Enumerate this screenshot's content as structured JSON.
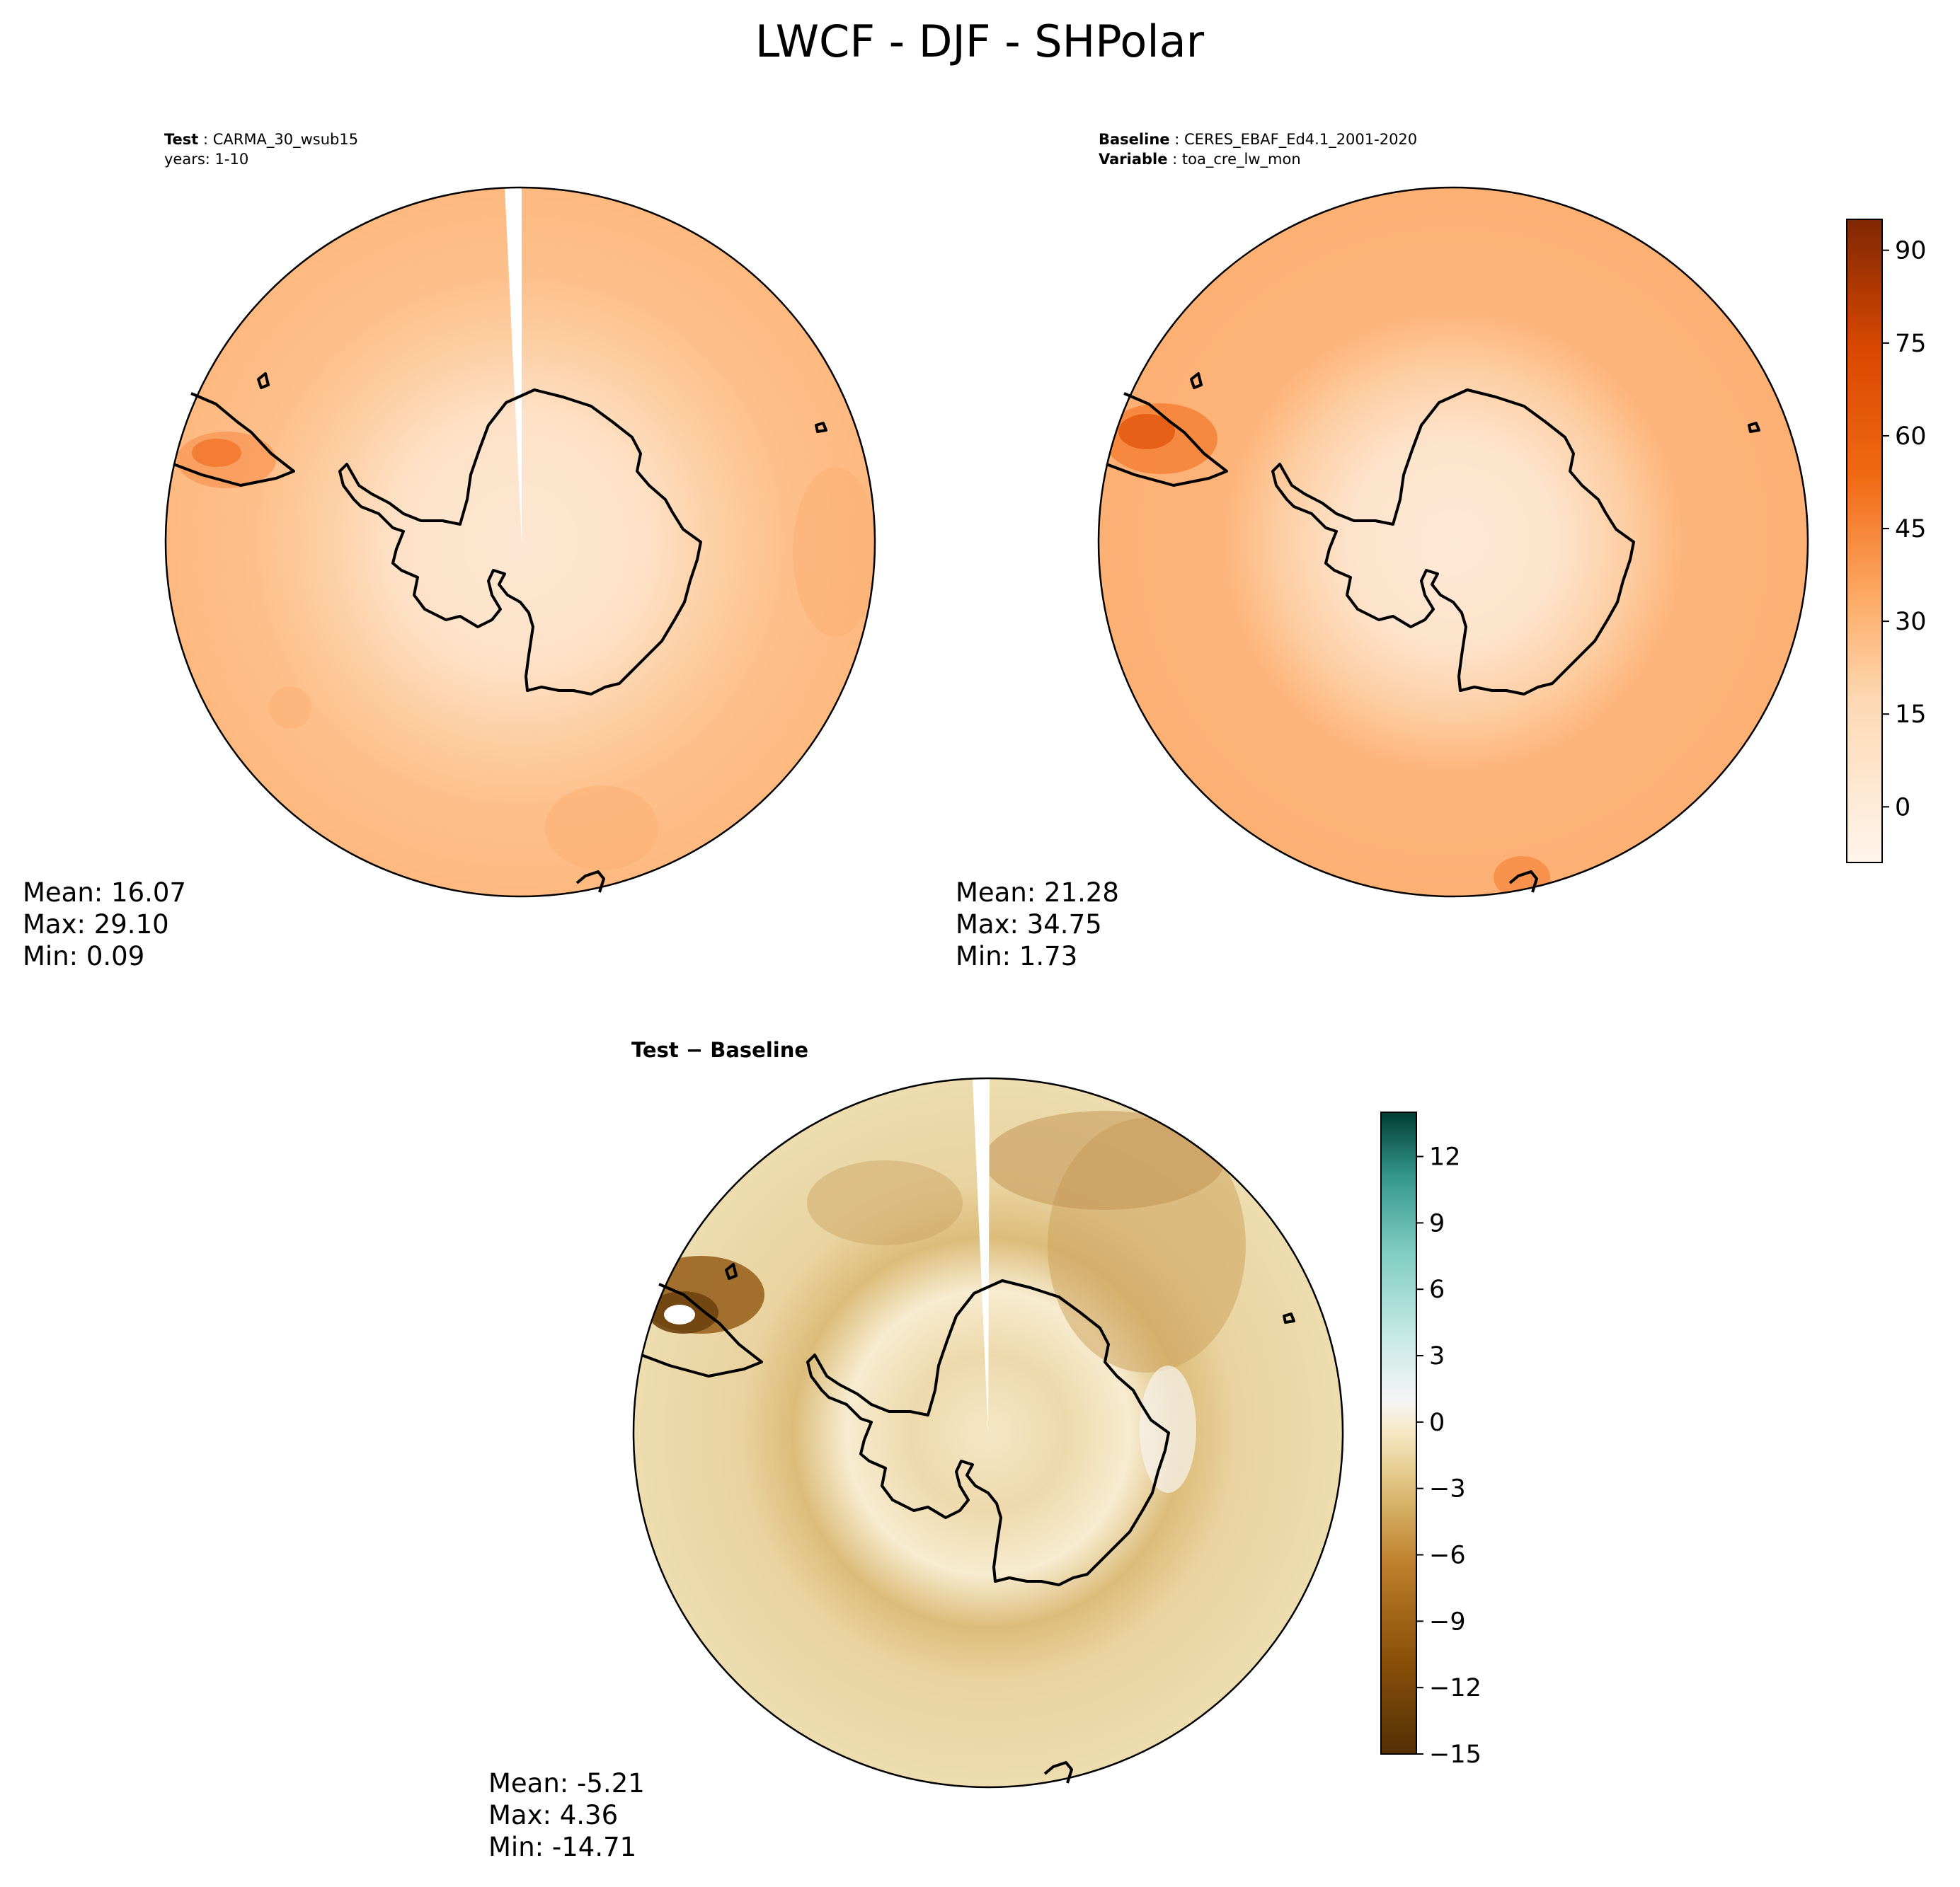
{
  "figure": {
    "title": "LWCF - DJF - SHPolar"
  },
  "chart_data": [
    {
      "type": "heatmap",
      "projection": "south-polar-stereographic",
      "panel": "test",
      "header": {
        "label": "Test",
        "value": "CARMA_30_wsub15",
        "line2": "years: 1-10"
      },
      "stats": {
        "mean": "Mean: 16.07",
        "max": "Max: 29.10",
        "min": "Min:  0.09"
      },
      "range": {
        "mean": 16.07,
        "max": 29.1,
        "min": 0.09
      },
      "colormap": "Oranges"
    },
    {
      "type": "heatmap",
      "projection": "south-polar-stereographic",
      "panel": "baseline",
      "header": {
        "label": "Baseline",
        "value": "CERES_EBAF_Ed4.1_2001-2020",
        "label2": "Variable",
        "value2": "toa_cre_lw_mon"
      },
      "stats": {
        "mean": "Mean: 21.28",
        "max": "Max: 34.75",
        "min": "Min:  1.73"
      },
      "range": {
        "mean": 21.28,
        "max": 34.75,
        "min": 1.73
      },
      "colormap": "Oranges",
      "colorbar": {
        "min": -9,
        "max": 95,
        "ticks": [
          0,
          15,
          30,
          45,
          60,
          75,
          90
        ],
        "tick_labels": [
          "0",
          "15",
          "30",
          "45",
          "60",
          "75",
          "90"
        ]
      }
    },
    {
      "type": "heatmap",
      "projection": "south-polar-stereographic",
      "panel": "difference",
      "header": {
        "label": "Test − Baseline"
      },
      "stats": {
        "mean": "Mean: -5.21",
        "max": "Max:  4.36",
        "min": "Min: -14.71"
      },
      "range": {
        "mean": -5.21,
        "max": 4.36,
        "min": -14.71
      },
      "colormap": "BrBG",
      "colorbar": {
        "min": -15,
        "max": 14,
        "ticks": [
          -15,
          -12,
          -9,
          -6,
          -3,
          0,
          3,
          6,
          9,
          12
        ],
        "tick_labels": [
          "−15",
          "−12",
          "−9",
          "−6",
          "−3",
          "0",
          "3",
          "6",
          "9",
          "12"
        ]
      }
    }
  ]
}
